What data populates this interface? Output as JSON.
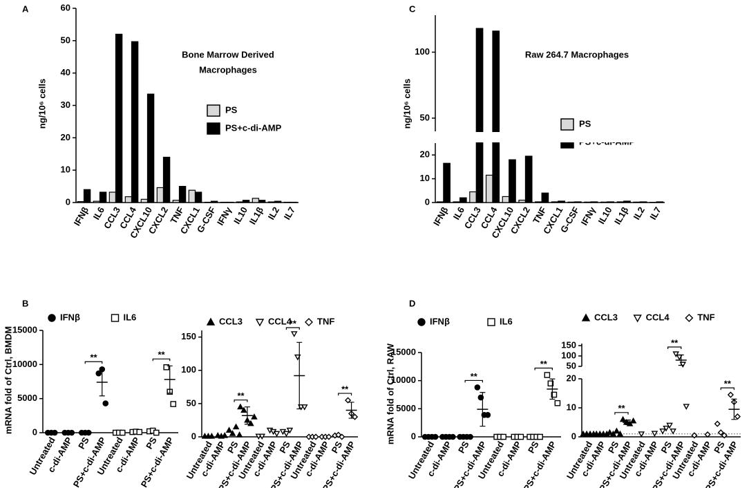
{
  "chart_data": [
    {
      "type": "bar",
      "panel": "A",
      "annotation": [
        "Bone Marrow Derived",
        "Macrophages"
      ],
      "y_label": "ng/10⁶ cells",
      "categories": [
        "IFNβ",
        "IL6",
        "CCL3",
        "CCL4",
        "CXCL10",
        "CXCL2",
        "TNF",
        "CXCL1",
        "G-CSF",
        "IFNγ",
        "IL10",
        "IL1β",
        "IL2",
        "IL7"
      ],
      "series": [
        {
          "name": "PS",
          "color": "#d9d9d9",
          "values": [
            0.3,
            0.4,
            3.2,
            1.8,
            1,
            4.6,
            0.7,
            3.8,
            0.1,
            0.1,
            0.2,
            1.3,
            0.2,
            0.1
          ]
        },
        {
          "name": "PS+c-di-AMP",
          "color": "#000000",
          "values": [
            4,
            3.2,
            52,
            49.7,
            33.5,
            14,
            5,
            3.2,
            0.4,
            0.1,
            0.7,
            0.7,
            0.4,
            0.1
          ]
        }
      ],
      "ylim": [
        0,
        60
      ],
      "yticks": [
        0,
        10,
        20,
        30,
        40,
        50,
        60
      ]
    },
    {
      "type": "bar",
      "panel": "C",
      "annotation": [
        "Raw 264.7 Macrophages"
      ],
      "y_label": "ng/10⁶ cells",
      "categories": [
        "IFNβ",
        "IL6",
        "CCL3",
        "CCL4",
        "CXCL10",
        "CXCL2",
        "TNF",
        "CXCL1",
        "G-CSF",
        "IFNγ",
        "IL10",
        "IL1β",
        "IL2",
        "IL7"
      ],
      "series": [
        {
          "name": "PS",
          "color": "#d9d9d9",
          "values": [
            0.3,
            0.3,
            4.5,
            11.5,
            2.5,
            1,
            0.3,
            0.3,
            0.2,
            0.2,
            0.2,
            0.3,
            0.2,
            0.1
          ]
        },
        {
          "name": "PS+c-di-AMP",
          "color": "#000000",
          "values": [
            16.5,
            2,
            118,
            116,
            18,
            19.5,
            4,
            0.6,
            0.3,
            0.3,
            0.3,
            0.6,
            0.3,
            0.3
          ]
        }
      ],
      "ylim": [
        0,
        128
      ],
      "ybreak": [
        25,
        40
      ],
      "yticks": [
        0,
        10,
        20,
        50,
        100
      ]
    },
    {
      "type": "dot",
      "panel": "B",
      "y_label": "mRNA fold of Ctrl, BMDM",
      "categories": [
        "Untreated",
        "c-di-AMP",
        "PS",
        "PS+c-di-AMP",
        "Untreated",
        "c-di-AMP",
        "PS",
        "PS+c-di-AMP"
      ],
      "series": [
        {
          "name": "IFNβ",
          "marker": "circle",
          "filled": true,
          "significance": "**",
          "values": [
            [
              0,
              0,
              0
            ],
            [
              0,
              0,
              0
            ],
            [
              0,
              0,
              0
            ],
            [
              8700,
              9300,
              4300
            ],
            null,
            null,
            null,
            null
          ],
          "means": [
            null,
            null,
            null,
            7400,
            null,
            null,
            null,
            null
          ],
          "errors": [
            null,
            null,
            null,
            2000,
            null,
            null,
            null,
            null
          ]
        },
        {
          "name": "IL6",
          "marker": "square",
          "filled": false,
          "significance": "**",
          "values": [
            null,
            null,
            null,
            null,
            [
              0,
              0,
              0
            ],
            [
              100,
              150,
              100
            ],
            [
              200,
              300,
              0
            ],
            [
              9600,
              6000,
              4200
            ]
          ],
          "means": [
            null,
            null,
            null,
            null,
            null,
            null,
            null,
            7800
          ],
          "errors": [
            null,
            null,
            null,
            null,
            null,
            null,
            null,
            2000
          ]
        }
      ],
      "ylim": [
        0,
        15000
      ],
      "yticks": [
        0,
        5000,
        10000,
        15000
      ]
    },
    {
      "type": "dot",
      "categories": [
        "Untreated",
        "c-di-AMP",
        "PS",
        "PS+c-di-AMP",
        "Untreated",
        "c-di-AMP",
        "PS",
        "PS+c-di-AMP",
        "Untreated",
        "c-di-AMP",
        "PS",
        "PS+c-di-AMP"
      ],
      "series": [
        {
          "name": "CCL3",
          "marker": "triangle",
          "filled": true,
          "significance": "**",
          "values": [
            [
              1,
              1,
              1
            ],
            [
              2,
              1,
              2
            ],
            [
              10,
              5,
              15,
              3
            ],
            [
              45,
              40,
              25,
              20,
              30
            ],
            null,
            null,
            null,
            null,
            null,
            null,
            null,
            null
          ],
          "means": [
            null,
            null,
            null,
            32,
            null,
            null,
            null,
            null,
            null,
            null,
            null,
            null
          ],
          "errors": [
            null,
            null,
            null,
            13,
            null,
            null,
            null,
            null,
            null,
            null,
            null,
            null
          ]
        },
        {
          "name": "CCL4",
          "marker": "triangle-down",
          "filled": false,
          "significance": "**",
          "values": [
            null,
            null,
            null,
            null,
            [
              1,
              1
            ],
            [
              10,
              8,
              5
            ],
            [
              8,
              5,
              10
            ],
            [
              155,
              120,
              45,
              45
            ],
            null,
            null,
            null,
            null
          ],
          "means": [
            null,
            null,
            null,
            null,
            null,
            null,
            null,
            92,
            null,
            null,
            null,
            null
          ],
          "errors": [
            null,
            null,
            null,
            null,
            null,
            null,
            null,
            50,
            null,
            null,
            null,
            null
          ]
        },
        {
          "name": "TNF",
          "marker": "diamond",
          "filled": false,
          "significance": "**",
          "values": [
            null,
            null,
            null,
            null,
            null,
            null,
            null,
            null,
            [
              0,
              0,
              0
            ],
            [
              0,
              0,
              0
            ],
            [
              2,
              3,
              0
            ],
            [
              55,
              35,
              30
            ]
          ],
          "means": [
            null,
            null,
            null,
            null,
            null,
            null,
            null,
            null,
            null,
            null,
            null,
            40
          ],
          "errors": [
            null,
            null,
            null,
            null,
            null,
            null,
            null,
            null,
            null,
            null,
            null,
            12
          ]
        }
      ],
      "ylim": [
        0,
        160
      ],
      "yticks": [
        0,
        50,
        100,
        150
      ]
    },
    {
      "type": "dot",
      "panel": "D",
      "y_label": "mRNA fold of Ctrl, RAW",
      "categories": [
        "Untreated",
        "c-di-AMP",
        "PS",
        "PS+c-di-AMP",
        "Untreated",
        "c-di-AMP",
        "PS",
        "PS+c-di-AMP"
      ],
      "series": [
        {
          "name": "IFNβ",
          "marker": "circle",
          "filled": true,
          "significance": "**",
          "values": [
            [
              0,
              0,
              0,
              0
            ],
            [
              0,
              0,
              0,
              0
            ],
            [
              0,
              0,
              0,
              0
            ],
            [
              8800,
              7000,
              3900,
              3900
            ],
            null,
            null,
            null,
            null
          ],
          "means": [
            null,
            null,
            null,
            4900,
            null,
            null,
            null,
            null
          ],
          "errors": [
            null,
            null,
            null,
            3000,
            null,
            null,
            null,
            null
          ]
        },
        {
          "name": "IL6",
          "marker": "square",
          "filled": false,
          "significance": "**",
          "values": [
            null,
            null,
            null,
            null,
            [
              0,
              0,
              0
            ],
            [
              0,
              0,
              0
            ],
            [
              0,
              0,
              0,
              0
            ],
            [
              11000,
              9500,
              7500,
              6000
            ]
          ],
          "means": [
            null,
            null,
            null,
            null,
            null,
            null,
            null,
            8500
          ],
          "errors": [
            null,
            null,
            null,
            null,
            null,
            null,
            null,
            1800
          ]
        }
      ],
      "ylim": [
        0,
        15000
      ],
      "yticks": [
        0,
        5000,
        10000,
        15000
      ]
    },
    {
      "type": "dot",
      "reference_line": 1,
      "categories": [
        "Untreated",
        "c-di-AMP",
        "PS",
        "PS+c-di-AMP",
        "Untreated",
        "c-di-AMP",
        "PS",
        "PS+c-di-AMP",
        "Untreated",
        "c-di-AMP",
        "PS",
        "PS+c-di-AMP"
      ],
      "series": [
        {
          "name": "CCL3",
          "marker": "triangle",
          "filled": true,
          "significance": "**",
          "values": [
            [
              1,
              1,
              1,
              1
            ],
            [
              1,
              1,
              1,
              1
            ],
            [
              1.5,
              1,
              2,
              1
            ],
            [
              6,
              5,
              4.5,
              5.5
            ],
            null,
            null,
            null,
            null,
            null,
            null,
            null,
            null
          ],
          "means": [
            null,
            null,
            null,
            5,
            null,
            null,
            null,
            null,
            null,
            null,
            null,
            null
          ],
          "errors": [
            null,
            null,
            null,
            0.8,
            null,
            null,
            null,
            null,
            null,
            null,
            null,
            null
          ]
        },
        {
          "name": "CCL4",
          "marker": "triangle-down",
          "filled": false,
          "significance": "**",
          "values": [
            null,
            null,
            null,
            null,
            [
              1
            ],
            [
              1.2
            ],
            [
              2,
              3,
              4,
              2
            ],
            [
              110,
              95,
              60,
              10.5
            ],
            null,
            null,
            null,
            null
          ],
          "means": [
            null,
            null,
            null,
            null,
            null,
            null,
            null,
            80,
            null,
            null,
            null,
            null
          ],
          "errors": [
            null,
            null,
            null,
            null,
            null,
            null,
            null,
            25,
            null,
            null,
            null,
            null
          ]
        },
        {
          "name": "TNF",
          "marker": "diamond",
          "filled": false,
          "significance": "**",
          "values": [
            null,
            null,
            null,
            null,
            null,
            null,
            null,
            null,
            [
              0.5
            ],
            [
              0.8
            ],
            [
              4.5,
              1.5,
              0.5
            ],
            [
              14.5,
              12,
              7
            ]
          ],
          "means": [
            null,
            null,
            null,
            null,
            null,
            null,
            null,
            null,
            null,
            null,
            null,
            9.5
          ],
          "errors": [
            null,
            null,
            null,
            null,
            null,
            null,
            null,
            null,
            null,
            null,
            null,
            3.5
          ]
        }
      ],
      "ylim": [
        0,
        160
      ],
      "ybreak": [
        20,
        50
      ],
      "yticks": [
        0,
        10,
        20,
        50,
        100,
        150
      ]
    }
  ]
}
